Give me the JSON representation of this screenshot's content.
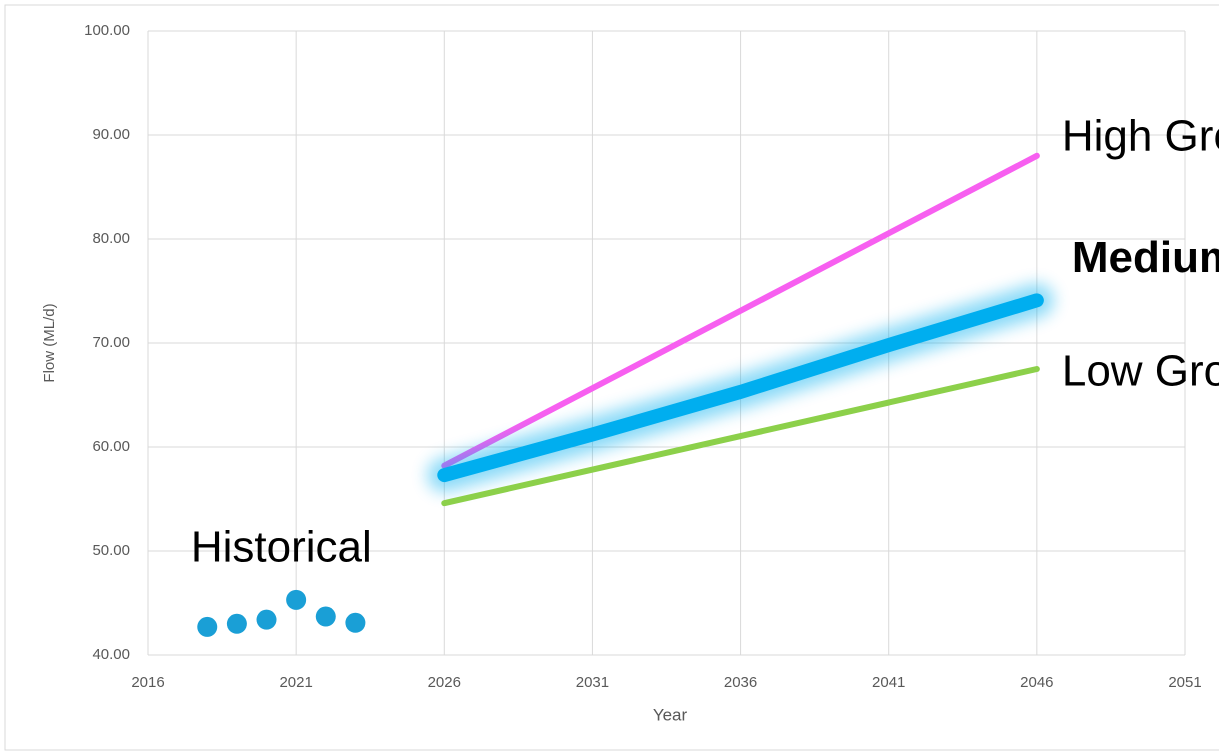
{
  "chart_data": {
    "type": "line",
    "x_label": "Year",
    "y_label": "Flow (ML/d)",
    "xlim": [
      2016,
      2051
    ],
    "xticks": [
      2016,
      2021,
      2026,
      2031,
      2036,
      2041,
      2046,
      2051
    ],
    "ylim": [
      40,
      100
    ],
    "yticks": [
      {
        "value": 40,
        "label": "40.00"
      },
      {
        "value": 50,
        "label": "50.00"
      },
      {
        "value": 60,
        "label": "60.00"
      },
      {
        "value": 70,
        "label": "70.00"
      },
      {
        "value": 80,
        "label": "80.00"
      },
      {
        "value": 90,
        "label": "90.00"
      },
      {
        "value": 100,
        "label": "100.00"
      }
    ],
    "grid": true,
    "series": [
      {
        "name": "Historical",
        "style": "scatter",
        "color": "#1a9fd6",
        "x": [
          2018,
          2019,
          2020,
          2021,
          2022,
          2023
        ],
        "values": [
          42.7,
          43.0,
          43.4,
          45.3,
          43.7,
          43.1
        ]
      },
      {
        "name": "High Growth",
        "style": "line",
        "color": "#f75ff0",
        "x": [
          2026,
          2046
        ],
        "values": [
          58.2,
          88.0
        ]
      },
      {
        "name": "Medium Growth",
        "style": "line",
        "bold": true,
        "glow": true,
        "color": "#00aeef",
        "x": [
          2026,
          2031,
          2036,
          2041,
          2046
        ],
        "values": [
          57.3,
          61.2,
          65.3,
          69.8,
          74.1
        ]
      },
      {
        "name": "Low Growth",
        "style": "line",
        "color": "#8cd04a",
        "x": [
          2026,
          2046
        ],
        "values": [
          54.6,
          67.5
        ]
      }
    ]
  }
}
